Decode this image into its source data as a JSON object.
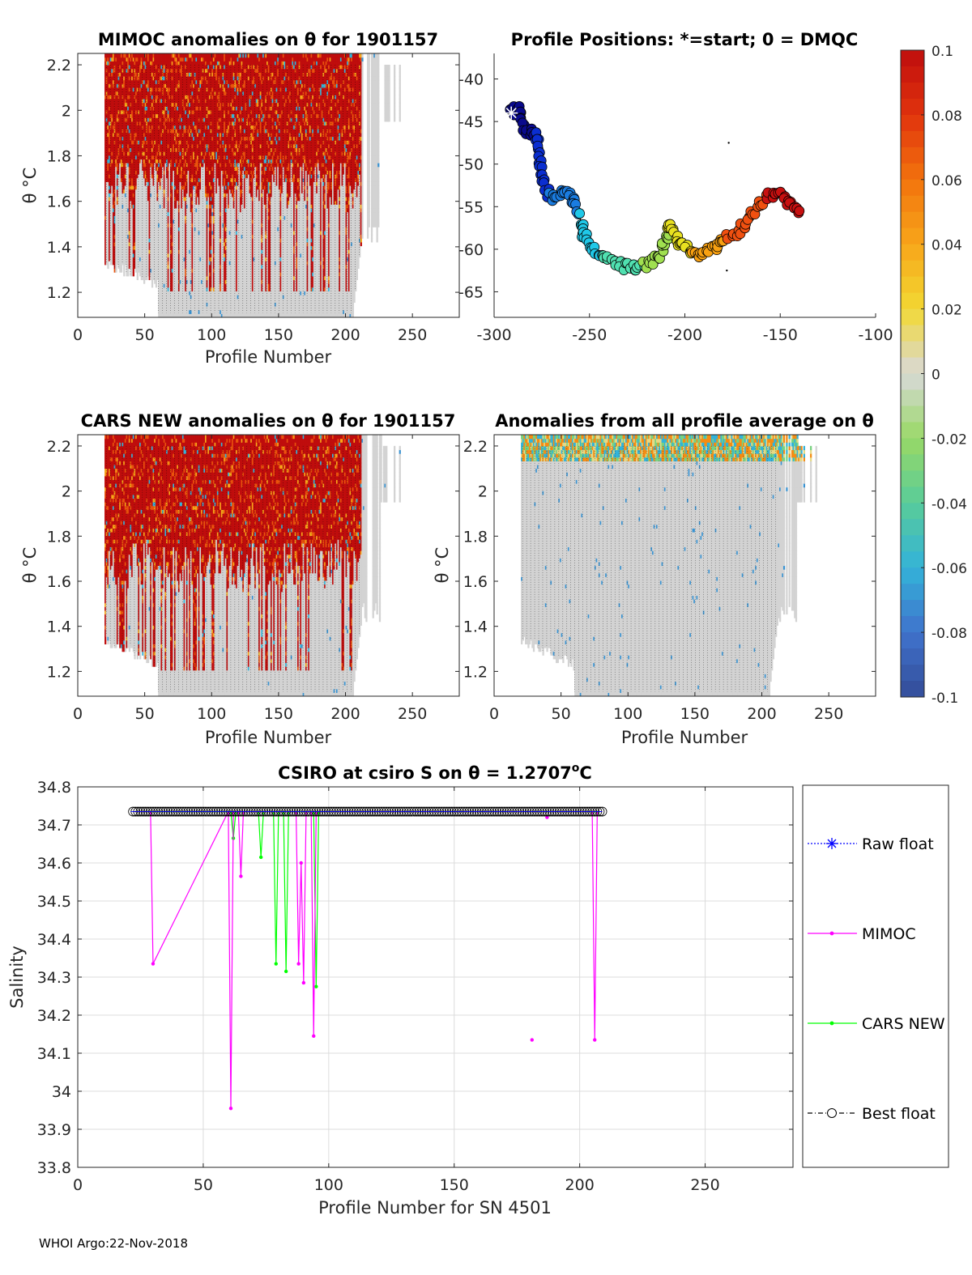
{
  "footer": "WHOI Argo:22-Nov-2018",
  "colors": {
    "raw_float": "#0000ff",
    "mimoc": "#ff00ff",
    "cars_new": "#00ff00",
    "best_float": "#000000",
    "grid": "#dcdcdc",
    "nodata": "#d3d3d3"
  },
  "chart_data": [
    {
      "id": "mimoc",
      "type": "heatmap",
      "title": "MIMOC anomalies on θ  for 1901157",
      "xlabel": "Profile Number",
      "ylabel": "θ °C",
      "xlim": [
        0,
        285
      ],
      "ylim": [
        1.09,
        2.25
      ],
      "xticks": [
        0,
        50,
        100,
        150,
        200,
        250
      ],
      "yticks": [
        1.2,
        1.4,
        1.6,
        1.8,
        2,
        2.2
      ],
      "profile_range": [
        20,
        240
      ],
      "profile_tops": [
        [
          20,
          2.24
        ],
        [
          210,
          2.24
        ],
        [
          225,
          2.2
        ],
        [
          240,
          1.95
        ]
      ],
      "profile_bottoms": [
        [
          20,
          1.3
        ],
        [
          60,
          1.2
        ],
        [
          100,
          1.09
        ],
        [
          200,
          1.09
        ],
        [
          210,
          1.35
        ],
        [
          240,
          1.95
        ]
      ],
      "dominant": "positive"
    },
    {
      "id": "positions",
      "type": "scatter",
      "title": "Profile Positions: *=start; 0 = DMQC",
      "xlim": [
        -300,
        -100
      ],
      "ylim": [
        -68,
        -37
      ],
      "xticks": [
        -300,
        -250,
        -200,
        -150,
        -100
      ],
      "yticks": [
        -40,
        -45,
        -50,
        -55,
        -60,
        -65
      ],
      "track": [
        [
          -291,
          -44
        ],
        [
          -287,
          -43.5
        ],
        [
          -284,
          -46
        ],
        [
          -278,
          -46.5
        ],
        [
          -276,
          -49
        ],
        [
          -275,
          -52
        ],
        [
          -270,
          -54
        ],
        [
          -263,
          -53
        ],
        [
          -258,
          -54.5
        ],
        [
          -255,
          -57
        ],
        [
          -252,
          -58.5
        ],
        [
          -248,
          -60
        ],
        [
          -241,
          -61
        ],
        [
          -232,
          -62
        ],
        [
          -225,
          -62.3
        ],
        [
          -218,
          -61.5
        ],
        [
          -213,
          -61
        ],
        [
          -210,
          -58.5
        ],
        [
          -208,
          -57
        ],
        [
          -204,
          -59
        ],
        [
          -198,
          -60
        ],
        [
          -193,
          -60.5
        ],
        [
          -186,
          -60
        ],
        [
          -180,
          -59
        ],
        [
          -172,
          -58
        ],
        [
          -165,
          -56
        ],
        [
          -158,
          -54
        ],
        [
          -150,
          -53.3
        ],
        [
          -145,
          -54.5
        ],
        [
          -140,
          -55.5
        ]
      ],
      "start_marker": [
        -291,
        -44
      ],
      "stray_points": [
        [
          -177,
          -47.5
        ],
        [
          -178,
          -62.5
        ]
      ]
    },
    {
      "id": "cars",
      "type": "heatmap",
      "title": "CARS NEW anomalies on θ for 1901157",
      "xlabel": "Profile Number",
      "ylabel": "θ °C",
      "xlim": [
        0,
        285
      ],
      "ylim": [
        1.09,
        2.25
      ],
      "xticks": [
        0,
        50,
        100,
        150,
        200,
        250
      ],
      "yticks": [
        1.2,
        1.4,
        1.6,
        1.8,
        2,
        2.2
      ],
      "profile_range": [
        20,
        240
      ],
      "dominant": "positive"
    },
    {
      "id": "avg",
      "type": "heatmap",
      "title": "Anomalies from all profile average on θ",
      "xlabel": "Profile Number",
      "ylabel": "θ °C",
      "xlim": [
        0,
        285
      ],
      "ylim": [
        1.09,
        2.25
      ],
      "xticks": [
        0,
        50,
        100,
        150,
        200,
        250
      ],
      "yticks": [
        1.2,
        1.4,
        1.6,
        1.8,
        2,
        2.2
      ],
      "profile_range": [
        20,
        240
      ],
      "dominant": "neutral"
    },
    {
      "id": "colorbar",
      "type": "colorbar",
      "range": [
        -0.1,
        0.1
      ],
      "ticks": [
        "0.1",
        "0.08",
        "0.06",
        "0.04",
        "0.02",
        "0",
        "-0.02",
        "-0.04",
        "-0.06",
        "-0.08",
        "-0.1"
      ]
    },
    {
      "id": "salinity",
      "type": "line",
      "title_prefix": "CSIRO at csiro S on θ = 1.2707",
      "title_sup": "o",
      "title_suffix": "C",
      "xlabel": "Profile Number for SN 4501",
      "ylabel": "Salinity",
      "xlim": [
        0,
        285
      ],
      "ylim": [
        33.8,
        34.8
      ],
      "xticks": [
        0,
        50,
        100,
        150,
        200,
        250
      ],
      "yticks": [
        "33.8",
        "33.9",
        "34",
        "34.1",
        "34.2",
        "34.3",
        "34.4",
        "34.5",
        "34.6",
        "34.7",
        "34.8"
      ],
      "grid": true,
      "legend_position": "right",
      "series": [
        {
          "name": "Raw float",
          "x_range": [
            22,
            209
          ],
          "value": 34.735
        },
        {
          "name": "MIMOC",
          "points": [
            [
              22,
              34.735
            ],
            [
              29,
              34.735
            ],
            [
              30,
              34.335
            ],
            [
              60,
              34.735
            ],
            [
              61,
              33.955
            ],
            [
              62,
              34.735
            ],
            [
              64,
              34.735
            ],
            [
              65,
              34.565
            ],
            [
              66,
              34.735
            ],
            [
              87,
              34.735
            ],
            [
              88,
              34.335
            ],
            [
              89,
              34.6
            ],
            [
              90,
              34.285
            ],
            [
              91,
              34.735
            ],
            [
              93,
              34.735
            ],
            [
              94,
              34.145
            ],
            [
              95,
              34.735
            ],
            [
              181,
              34.135
            ],
            [
              187,
              34.72
            ],
            [
              205,
              34.735
            ],
            [
              206,
              34.135
            ],
            [
              207,
              34.735
            ],
            [
              209,
              34.735
            ]
          ]
        },
        {
          "name": "CARS NEW",
          "points": [
            [
              22,
              34.735
            ],
            [
              61,
              34.735
            ],
            [
              62,
              34.665
            ],
            [
              63,
              34.735
            ],
            [
              72,
              34.735
            ],
            [
              73,
              34.615
            ],
            [
              74,
              34.735
            ],
            [
              78,
              34.735
            ],
            [
              79,
              34.335
            ],
            [
              80,
              34.735
            ],
            [
              82,
              34.735
            ],
            [
              83,
              34.315
            ],
            [
              84,
              34.735
            ],
            [
              94,
              34.735
            ],
            [
              95,
              34.275
            ],
            [
              96,
              34.735
            ],
            [
              209,
              34.735
            ]
          ]
        },
        {
          "name": "Best float",
          "x_range": [
            22,
            209
          ],
          "value": 34.735
        }
      ]
    }
  ]
}
